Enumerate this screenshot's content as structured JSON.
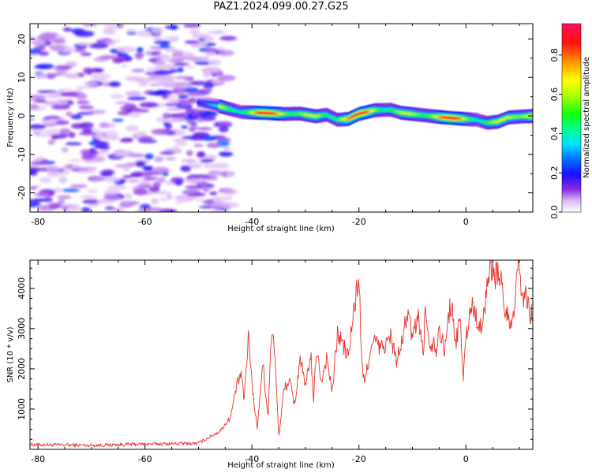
{
  "figure": {
    "title": "PAZ1.2024.099.00.27.G25"
  },
  "colors": {
    "snr_line": "#e8302a",
    "axis": "#000000",
    "background": "#ffffff"
  },
  "chart_data": [
    {
      "type": "heatmap",
      "xlabel": "Height of straight line (km)",
      "ylabel": "Frequency (Hz)",
      "xlim": [
        -81.5,
        12.5
      ],
      "ylim": [
        -25,
        24
      ],
      "x_ticks": [
        -80,
        -60,
        -40,
        -20,
        0
      ],
      "x_tick_labels": [
        "-80",
        "-60",
        "-40",
        "-20",
        "0"
      ],
      "y_ticks": [
        20,
        10,
        0,
        -10,
        -20
      ],
      "y_tick_labels": [
        "20",
        "10",
        "0",
        "-10",
        "-20"
      ],
      "colorbar": {
        "label": "Normalized spectral amplitude",
        "range": [
          0,
          0.96
        ],
        "ticks": [
          0.0,
          0.2,
          0.4,
          0.6,
          0.8
        ],
        "tick_labels": [
          "0.0",
          "0.2",
          "0.4",
          "0.6",
          "0.8"
        ],
        "colormap": "gist_rainbow_r"
      },
      "noise_region": {
        "x_range": [
          -81.5,
          -44
        ],
        "freq_range": [
          -25,
          24
        ],
        "level": 0.12
      },
      "signal_ridge": {
        "points": [
          [
            -50,
            3.5
          ],
          [
            -46,
            2.5
          ],
          [
            -42,
            1.0
          ],
          [
            -38,
            0.8
          ],
          [
            -34,
            0.5
          ],
          [
            -31,
            0.6
          ],
          [
            -28,
            -0.1
          ],
          [
            -26,
            0.3
          ],
          [
            -24,
            -1.0
          ],
          [
            -22,
            -0.8
          ],
          [
            -20,
            0.5
          ],
          [
            -17,
            1.5
          ],
          [
            -14,
            1.6
          ],
          [
            -12,
            0.8
          ],
          [
            -8,
            0.2
          ],
          [
            -4,
            -0.4
          ],
          [
            0,
            -0.8
          ],
          [
            2,
            -1.0
          ],
          [
            4,
            -1.8
          ],
          [
            6,
            -1.5
          ],
          [
            8,
            -0.4
          ],
          [
            10,
            -0.2
          ],
          [
            12.5,
            0.0
          ]
        ],
        "peak_amplitude": 0.96
      }
    },
    {
      "type": "line",
      "xlabel": "Height of straight line (km)",
      "ylabel": "SNR (10 * v/v)",
      "xlim": [
        -81.5,
        12.5
      ],
      "ylim": [
        0,
        4700
      ],
      "x_ticks": [
        -80,
        -60,
        -40,
        -20,
        0
      ],
      "x_tick_labels": [
        "-80",
        "-60",
        "-40",
        "-20",
        "0"
      ],
      "y_ticks": [
        1000,
        2000,
        3000,
        4000
      ],
      "y_tick_labels": [
        "1000",
        "2000",
        "3000",
        "4000"
      ],
      "series": [
        {
          "x": [
            -81.5,
            -70,
            -60,
            -50,
            -46,
            -44,
            -43,
            -42,
            -41.5,
            -40.6,
            -40,
            -39,
            -38,
            -37,
            -36.5,
            -36,
            -35.5,
            -35,
            -34,
            -33,
            -32,
            -31,
            -30,
            -29,
            -28.5,
            -28,
            -27,
            -26,
            -25,
            -24,
            -23,
            -22,
            -21,
            -20,
            -19.5,
            -19,
            -18,
            -17,
            -16,
            -15,
            -14,
            -13,
            -12,
            -11,
            -10,
            -9.5,
            -9,
            -8,
            -7.5,
            -7,
            -6,
            -5.5,
            -5,
            -4,
            -3,
            -2.5,
            -2,
            -1.5,
            -1,
            -0.5,
            0,
            1,
            2,
            3,
            4,
            5,
            5.5,
            6,
            7,
            7.5,
            8,
            8.5,
            9,
            10,
            10.5,
            11,
            12,
            12.5
          ],
          "y": [
            120,
            100,
            130,
            150,
            450,
            800,
            1500,
            1900,
            1200,
            2900,
            1600,
            500,
            2200,
            800,
            2600,
            2800,
            1800,
            300,
            1500,
            1700,
            1100,
            2300,
            1500,
            2400,
            1100,
            2500,
            1700,
            2300,
            1400,
            2900,
            2600,
            2300,
            3400,
            4300,
            2200,
            1600,
            2400,
            2700,
            2500,
            2600,
            2800,
            2200,
            2600,
            3400,
            2800,
            3000,
            3400,
            2400,
            3700,
            2600,
            2700,
            2500,
            3100,
            2400,
            3600,
            3400,
            2500,
            3000,
            3200,
            1700,
            2800,
            3600,
            3300,
            2900,
            4200,
            4600,
            4300,
            4500,
            3800,
            3200,
            3500,
            2800,
            3500,
            4700,
            3600,
            3900,
            3300,
            3400
          ]
        }
      ]
    }
  ]
}
